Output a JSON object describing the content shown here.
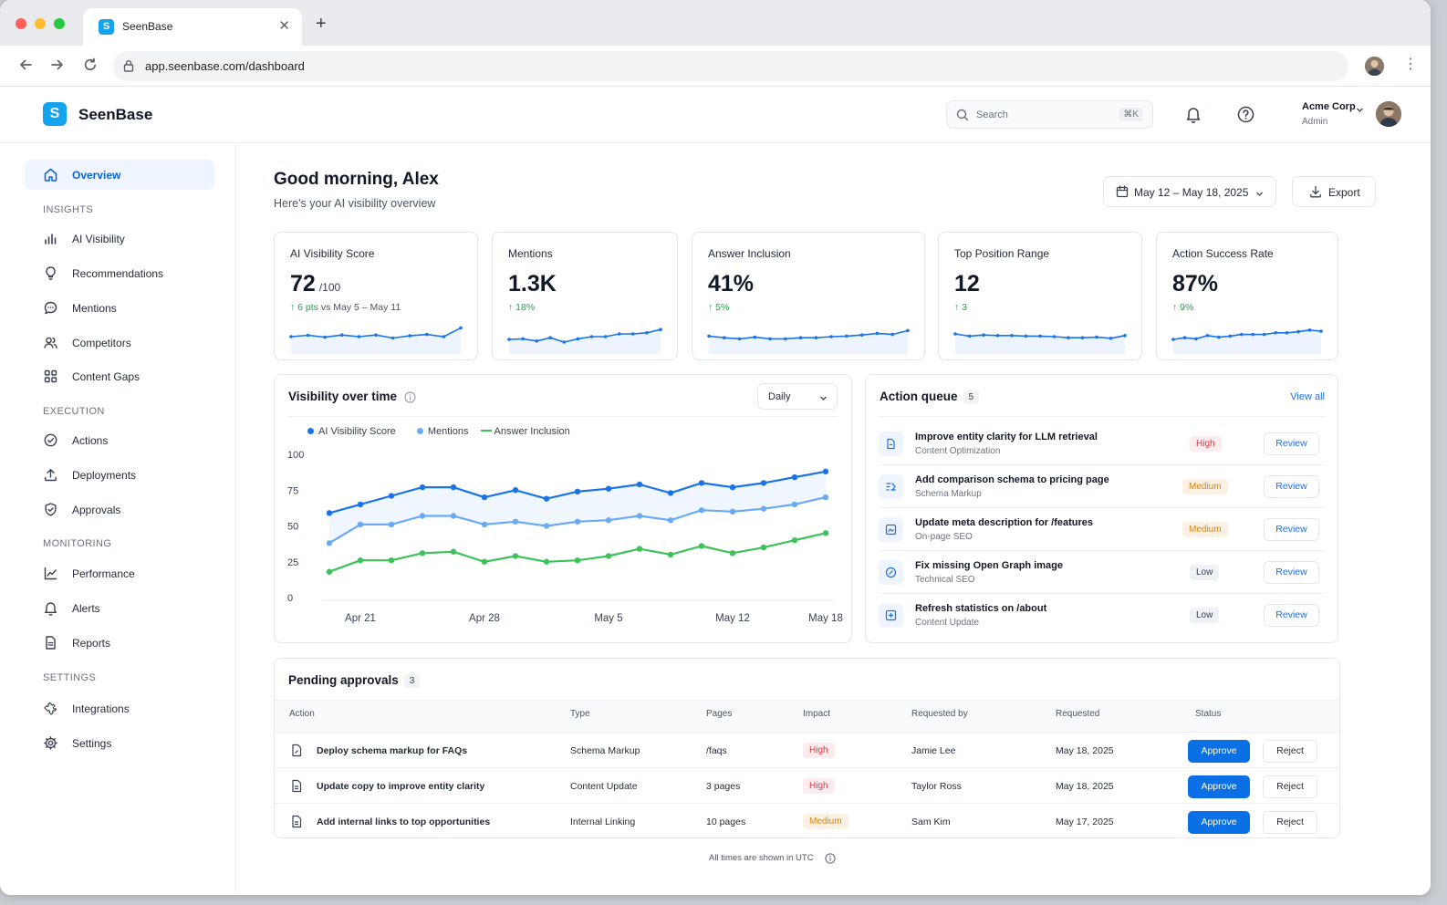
{
  "browser": {
    "tab_title": "SeenBase",
    "favicon_letter": "S",
    "url": "app.seenbase.com/dashboard"
  },
  "header": {
    "logo_letter": "S",
    "brand": "SeenBase",
    "search_placeholder": "Search",
    "search_shortcut": "⌘K",
    "org_name": "Acme Corp",
    "org_role": "Admin"
  },
  "sidebar": {
    "overview": "Overview",
    "sections": {
      "insights": "INSIGHTS",
      "execution": "EXECUTION",
      "monitoring": "MONITORING",
      "settings": "SETTINGS"
    },
    "items": {
      "ai_visibility": "AI Visibility",
      "recommendations": "Recommendations",
      "mentions": "Mentions",
      "competitors": "Competitors",
      "content_gaps": "Content Gaps",
      "actions": "Actions",
      "deployments": "Deployments",
      "approvals": "Approvals",
      "performance": "Performance",
      "alerts": "Alerts",
      "reports": "Reports",
      "integrations": "Integrations",
      "settings": "Settings"
    }
  },
  "page": {
    "greeting": "Good morning, Alex",
    "subtitle": "Here's your AI visibility overview",
    "date_range": "May 12 – May 18, 2025",
    "export_label": "Export"
  },
  "kpis": [
    {
      "label": "AI Visibility Score",
      "value": "72",
      "unit": "/100",
      "delta": "↑ 6 pts",
      "vs": "vs May 5 – May 11",
      "spark": [
        50,
        55,
        48,
        56,
        50,
        56,
        45,
        53,
        58,
        50,
        82
      ]
    },
    {
      "label": "Mentions",
      "value": "1.3K",
      "unit": "",
      "delta": "↑ 18%",
      "vs": "",
      "spark": [
        40,
        42,
        34,
        46,
        30,
        42,
        50,
        50,
        60,
        60,
        64,
        76
      ]
    },
    {
      "label": "Answer Inclusion",
      "value": "41%",
      "unit": "",
      "delta": "↑ 5%",
      "vs": "",
      "spark": [
        52,
        46,
        42,
        48,
        42,
        42,
        46,
        46,
        50,
        52,
        56,
        62,
        58,
        72
      ]
    },
    {
      "label": "Top Position Range",
      "value": "12",
      "unit": "",
      "delta": "↑ 3",
      "vs": "",
      "spark": [
        60,
        52,
        56,
        54,
        54,
        52,
        52,
        50,
        46,
        46,
        48,
        44,
        54
      ]
    },
    {
      "label": "Action Success Rate",
      "value": "87%",
      "unit": "",
      "delta": "↑ 9%",
      "vs": "",
      "spark": [
        40,
        46,
        42,
        54,
        48,
        52,
        58,
        58,
        58,
        64,
        64,
        68,
        74,
        70
      ]
    }
  ],
  "visibility_chart": {
    "title": "Visibility over time",
    "granularity": "Daily",
    "colors": {
      "ai": "#1a73e8",
      "mentions": "#6aaaf5",
      "inclusion": "#3cc25a"
    }
  },
  "chart_data": {
    "type": "line",
    "title": "Visibility over time",
    "x_tick_labels": [
      "Apr 21",
      "Apr 28",
      "May 5",
      "May 12",
      "May 18"
    ],
    "y_ticks": [
      "100",
      "75",
      "50",
      "25",
      "0"
    ],
    "ylim": [
      0,
      100
    ],
    "x_points": 17,
    "legend": "top-left",
    "grid": false,
    "series": [
      {
        "name": "AI Visibility Score",
        "color": "#1a73e8",
        "values": [
          59,
          65,
          71,
          77,
          77,
          70,
          75,
          69,
          74,
          76,
          79,
          73,
          80,
          77,
          80,
          84,
          88
        ]
      },
      {
        "name": "Mentions",
        "color": "#6aaaf5",
        "values": [
          38,
          51,
          51,
          57,
          57,
          51,
          53,
          50,
          53,
          54,
          57,
          54,
          61,
          60,
          62,
          65,
          70
        ]
      },
      {
        "name": "Answer Inclusion",
        "color": "#3cc25a",
        "values": [
          18,
          26,
          26,
          31,
          32,
          25,
          29,
          25,
          26,
          29,
          34,
          30,
          36,
          31,
          35,
          40,
          45
        ]
      }
    ]
  },
  "action_queue": {
    "title": "Action queue",
    "count": "5",
    "view_all": "View all",
    "review_label": "Review",
    "items": [
      {
        "title": "Improve entity clarity for LLM retrieval",
        "sub": "Content Optimization",
        "priority": "High"
      },
      {
        "title": "Add comparison schema to pricing page",
        "sub": "Schema Markup",
        "priority": "Medium"
      },
      {
        "title": "Update meta description for /features",
        "sub": "On-page SEO",
        "priority": "Medium"
      },
      {
        "title": "Fix missing Open Graph image",
        "sub": "Technical SEO",
        "priority": "Low"
      },
      {
        "title": "Refresh statistics on /about",
        "sub": "Content Update",
        "priority": "Low"
      }
    ]
  },
  "pending": {
    "title": "Pending approvals",
    "count": "3",
    "headers": [
      "Action",
      "Type",
      "Pages",
      "Impact",
      "Requested by",
      "Requested",
      "Status"
    ],
    "approve_label": "Approve",
    "reject_label": "Reject",
    "rows": [
      {
        "action": "Deploy schema markup for FAQs",
        "type": "Schema Markup",
        "pages": "/faqs",
        "impact": "High",
        "by": "Jamie Lee",
        "date": "May 18, 2025"
      },
      {
        "action": "Update copy to improve entity clarity",
        "type": "Content Update",
        "pages": "3 pages",
        "impact": "High",
        "by": "Taylor Ross",
        "date": "May 18, 2025"
      },
      {
        "action": "Add internal links to top opportunities",
        "type": "Internal Linking",
        "pages": "10 pages",
        "impact": "Medium",
        "by": "Sam Kim",
        "date": "May 17, 2025"
      }
    ],
    "footnote": "All times are shown in UTC"
  }
}
